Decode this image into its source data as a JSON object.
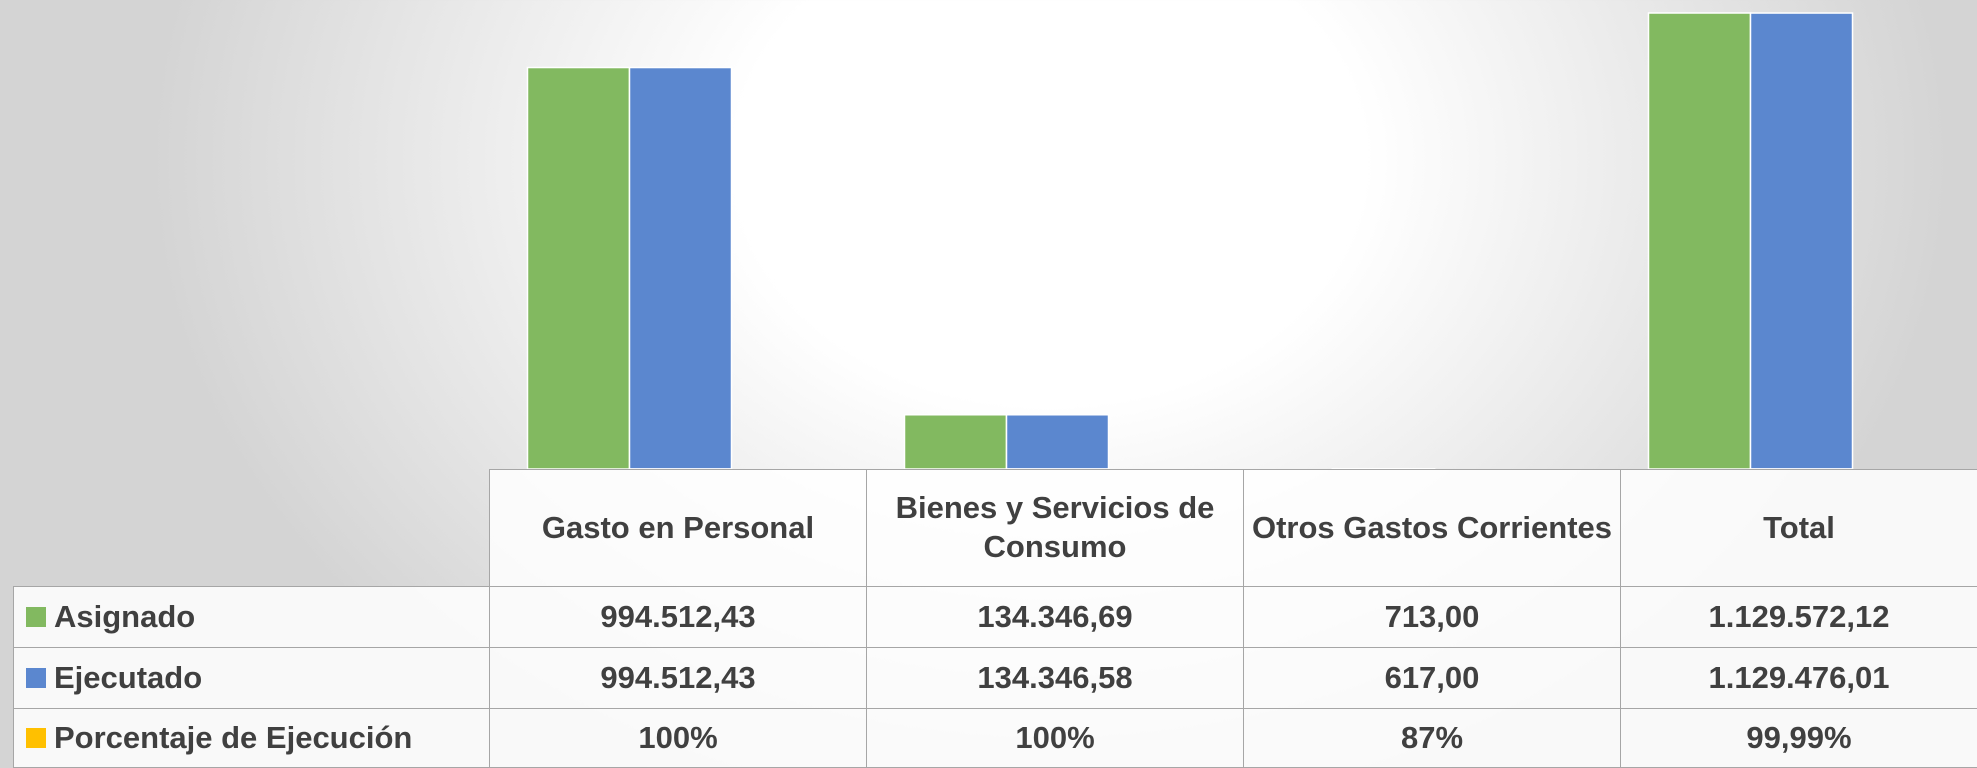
{
  "chart_data": {
    "type": "bar",
    "categories": [
      "Gasto en Personal",
      "Bienes y Servicios de Consumo",
      "Otros Gastos Corrientes",
      "Total"
    ],
    "series": [
      {
        "name": "Asignado",
        "color": "#82b960",
        "values": [
          994512.43,
          134346.69,
          713,
          1129572.12
        ],
        "value_labels": [
          "994.512,43",
          "134.346,69",
          "713,00",
          "1.129.572,12"
        ]
      },
      {
        "name": "Ejecutado",
        "color": "#5b87cf",
        "values": [
          994512.43,
          134346.58,
          617,
          1129476.01
        ],
        "value_labels": [
          "994.512,43",
          "134.346,58",
          "617,00",
          "1.129.476,01"
        ]
      },
      {
        "name": "Porcentaje de Ejecución",
        "color": "#ffc000",
        "values": [
          100,
          100,
          87,
          99.99
        ],
        "value_labels": [
          "100%",
          "100%",
          "87%",
          "99,99%"
        ]
      }
    ]
  }
}
